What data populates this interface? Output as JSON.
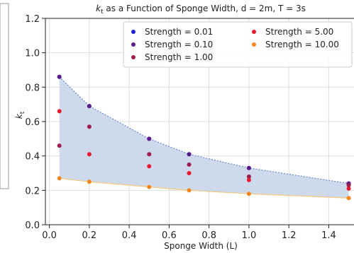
{
  "chart_data": {
    "type": "scatter",
    "title": "k_t as a Function of Sponge Width, d = 2m, T = 3s",
    "title_parts": {
      "symbol": "k",
      "subscript": "t",
      "rest": " as a Function of Sponge Width, d = 2m, T = 3s"
    },
    "xlabel": "Sponge Width (L)",
    "ylabel": "k_t",
    "ylabel_parts": {
      "symbol": "k",
      "subscript": "t"
    },
    "xlim": [
      -0.02,
      1.53
    ],
    "ylim": [
      0.0,
      1.2
    ],
    "xticks": [
      0.0,
      0.2,
      0.4,
      0.6,
      0.8,
      1.0,
      1.2,
      1.4
    ],
    "xtick_labels": [
      "0.0",
      "0.2",
      "0.4",
      "0.6",
      "0.8",
      "1.0",
      "1.2",
      "1.4"
    ],
    "yticks": [
      0.0,
      0.2,
      0.4,
      0.6,
      0.8,
      1.0,
      1.2
    ],
    "ytick_labels": [
      "0.0",
      "0.2",
      "0.4",
      "0.6",
      "0.8",
      "1.0",
      "1.2"
    ],
    "grid": true,
    "legend_position": "top-right",
    "x": [
      0.05,
      0.2,
      0.5,
      0.7,
      1.0,
      1.5
    ],
    "series": [
      {
        "name": "Strength = 0.01",
        "color": "#1f1fe0",
        "values": [
          0.86,
          0.69,
          0.5,
          0.41,
          0.33,
          0.24
        ]
      },
      {
        "name": "Strength = 0.10",
        "color": "#5a1a8a",
        "values": [
          0.86,
          0.69,
          0.5,
          0.41,
          0.33,
          0.24
        ]
      },
      {
        "name": "Strength = 1.00",
        "color": "#9e1c4e",
        "values": [
          0.46,
          0.57,
          0.41,
          0.35,
          0.28,
          0.23
        ]
      },
      {
        "name": "Strength = 5.00",
        "color": "#e8192c",
        "values": [
          0.66,
          0.41,
          0.34,
          0.3,
          0.26,
          0.21
        ]
      },
      {
        "name": "Strength = 10.00",
        "color": "#f5861f",
        "values": [
          0.27,
          0.25,
          0.22,
          0.2,
          0.18,
          0.155
        ]
      }
    ],
    "band": {
      "upper_series": "Strength = 0.01",
      "lower_series": "Strength = 10.00",
      "fill_color": "#c9d5ea",
      "upper_line_color": "#6b86c9",
      "lower_line_color": "#f4c97e"
    }
  }
}
